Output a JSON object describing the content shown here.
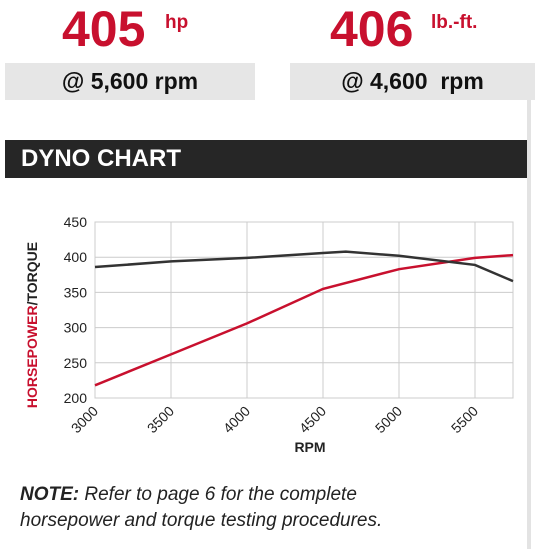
{
  "header": {
    "stats": [
      {
        "value": "405",
        "unit": "hp",
        "rpm": "@ 5,600 rpm"
      },
      {
        "value": "406",
        "unit": "lb.-ft.",
        "rpm": "@ 4,600  rpm"
      }
    ],
    "section": "DYNO CHART"
  },
  "chart_data": {
    "type": "line",
    "ylabel": [
      "HORSEPOWER",
      "/TORQUE"
    ],
    "ylabel_colors": [
      "#c8102e",
      "#222222"
    ],
    "xlabel": "RPM",
    "series": [
      {
        "color": "#c8102e",
        "x": [
          3000,
          3500,
          4000,
          4500,
          5000,
          5500,
          5750
        ],
        "values": [
          218,
          262,
          306,
          355,
          383,
          399,
          403
        ]
      },
      {
        "color": "#333333",
        "x": [
          3000,
          3500,
          4000,
          4500,
          4650,
          5000,
          5500,
          5750
        ],
        "values": [
          386,
          394,
          399,
          406,
          408,
          402,
          389,
          366
        ]
      }
    ],
    "xlim": [
      3000,
      5750
    ],
    "xticks": [
      3000,
      3500,
      4000,
      4500,
      5000,
      5500
    ],
    "ylim": [
      200,
      450
    ],
    "yticks": [
      200,
      250,
      300,
      350,
      400,
      450
    ],
    "grid": true
  },
  "note": {
    "label": "NOTE:",
    "lines": [
      " Refer to page 6 for the complete",
      "horsepower and torque testing procedures."
    ]
  }
}
